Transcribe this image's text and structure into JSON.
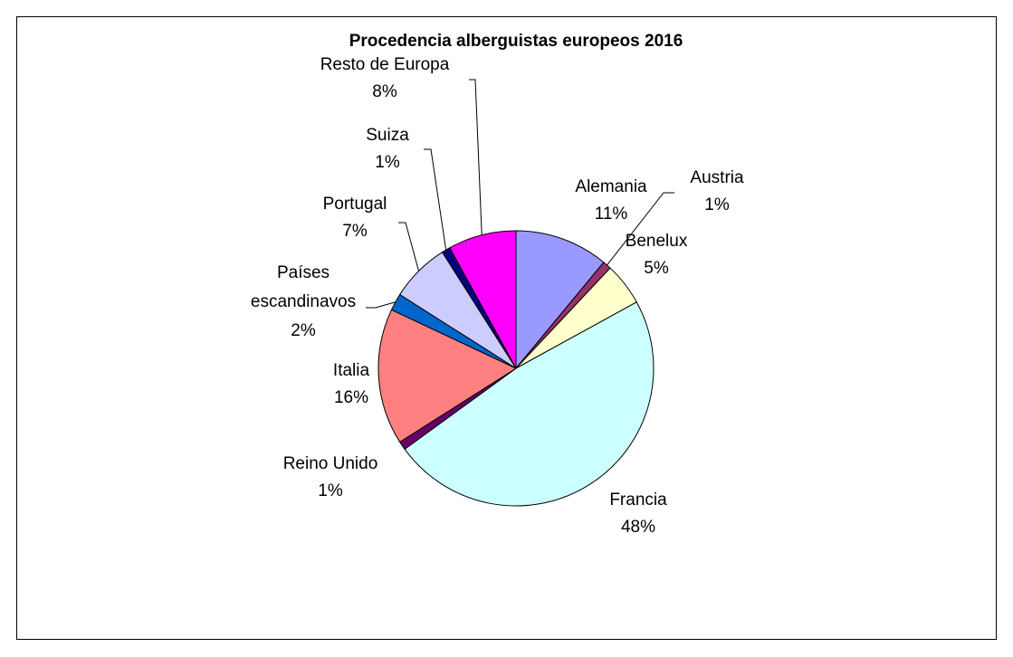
{
  "chart_data": {
    "type": "pie",
    "title": "Procedencia alberguistas europeos 2016",
    "categories": [
      "Alemania",
      "Austria",
      "Benelux",
      "Francia",
      "Reino Unido",
      "Italia",
      "Países escandinavos",
      "Portugal",
      "Suiza",
      "Resto de Europa"
    ],
    "values": [
      11,
      1,
      5,
      48,
      1,
      16,
      2,
      7,
      1,
      8
    ],
    "value_labels": [
      "11%",
      "1%",
      "5%",
      "48%",
      "1%",
      "16%",
      "2%",
      "7%",
      "1%",
      "8%"
    ],
    "colors": [
      "#9999ff",
      "#993366",
      "#ffffcc",
      "#ccffff",
      "#660066",
      "#ff8080",
      "#0066cc",
      "#ccccff",
      "#000080",
      "#ff00ff"
    ]
  }
}
